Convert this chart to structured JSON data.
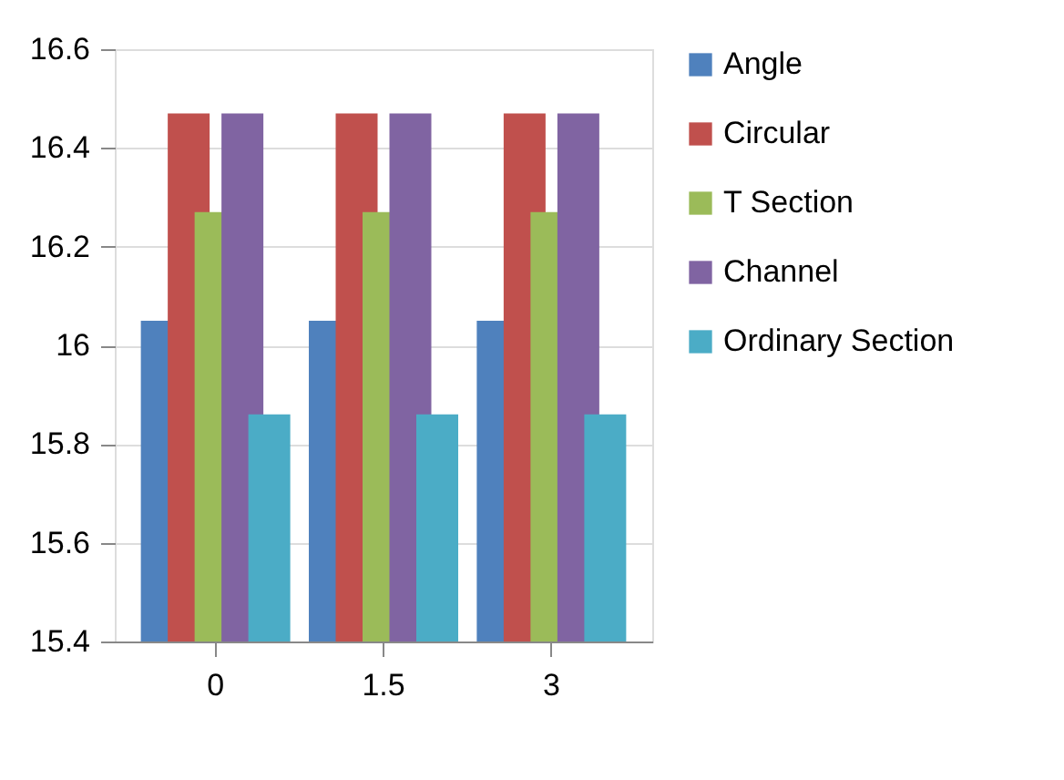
{
  "chart_data": {
    "type": "bar",
    "categories": [
      "0",
      "1.5",
      "3"
    ],
    "series": [
      {
        "name": "Angle",
        "color": "#4f81bd",
        "values": [
          16.05,
          16.05,
          16.05
        ]
      },
      {
        "name": "Circular",
        "color": "#c0504d",
        "values": [
          16.47,
          16.47,
          16.47
        ]
      },
      {
        "name": "T Section",
        "color": "#9bbb59",
        "values": [
          16.27,
          16.27,
          16.27
        ]
      },
      {
        "name": "Channel",
        "color": "#8064a2",
        "values": [
          16.47,
          16.47,
          16.47
        ]
      },
      {
        "name": "Ordinary Section",
        "color": "#4bacc6",
        "values": [
          15.86,
          15.86,
          15.86
        ]
      }
    ],
    "ylim": [
      15.4,
      16.6
    ],
    "yticks": [
      15.4,
      15.6,
      15.8,
      16,
      16.2,
      16.4,
      16.6
    ],
    "grid": "y",
    "legend": "right"
  }
}
